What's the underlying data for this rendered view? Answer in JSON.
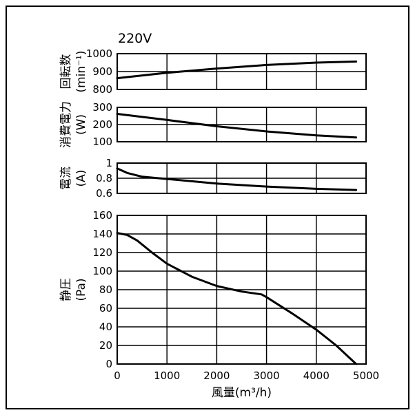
{
  "chart_data": [
    {
      "type": "line",
      "title": "220V",
      "ylabel_lines": [
        "回転数",
        "(min⁻¹)"
      ],
      "ylim": [
        800,
        1000
      ],
      "yticks": [
        "1000",
        "900",
        "800"
      ],
      "xlim": [
        0,
        5000
      ],
      "grid": true,
      "series": [
        {
          "x": [
            0,
            1000,
            2000,
            3000,
            4000,
            4800
          ],
          "y": [
            863,
            893,
            917,
            937,
            950,
            956
          ]
        }
      ]
    },
    {
      "type": "line",
      "ylabel_lines": [
        "消費電力",
        "(W)"
      ],
      "ylim": [
        100,
        300
      ],
      "yticks": [
        "300",
        "200",
        "100"
      ],
      "xlim": [
        0,
        5000
      ],
      "grid": true,
      "series": [
        {
          "x": [
            0,
            1000,
            2000,
            3000,
            4000,
            4800
          ],
          "y": [
            262,
            227,
            190,
            160,
            137,
            125
          ]
        }
      ]
    },
    {
      "type": "line",
      "ylabel_lines": [
        "電流",
        "(A)"
      ],
      "ylim": [
        0.6,
        1.0
      ],
      "yticks": [
        "1",
        "0.8",
        "0.6"
      ],
      "xlim": [
        0,
        5000
      ],
      "grid": true,
      "series": [
        {
          "x": [
            0,
            200,
            500,
            1000,
            2000,
            3000,
            4000,
            4800
          ],
          "y": [
            0.93,
            0.87,
            0.82,
            0.79,
            0.73,
            0.69,
            0.66,
            0.645
          ]
        }
      ]
    },
    {
      "type": "line",
      "ylabel_lines": [
        "静圧",
        "(Pa)"
      ],
      "xlabel": "風量(m³/h)",
      "ylim": [
        0,
        160
      ],
      "yticks": [
        "160",
        "140",
        "120",
        "100",
        "80",
        "60",
        "40",
        "20",
        "0"
      ],
      "xlim": [
        0,
        5000
      ],
      "xticks": [
        "0",
        "1000",
        "2000",
        "3000",
        "4000",
        "5000"
      ],
      "grid": true,
      "series": [
        {
          "x": [
            0,
            200,
            400,
            700,
            1000,
            1500,
            2000,
            2500,
            2900,
            3000,
            3500,
            4000,
            4400,
            4800
          ],
          "y": [
            141,
            139,
            133,
            120,
            108,
            94,
            84,
            78,
            75,
            72,
            55,
            37,
            20,
            0
          ]
        }
      ]
    }
  ]
}
